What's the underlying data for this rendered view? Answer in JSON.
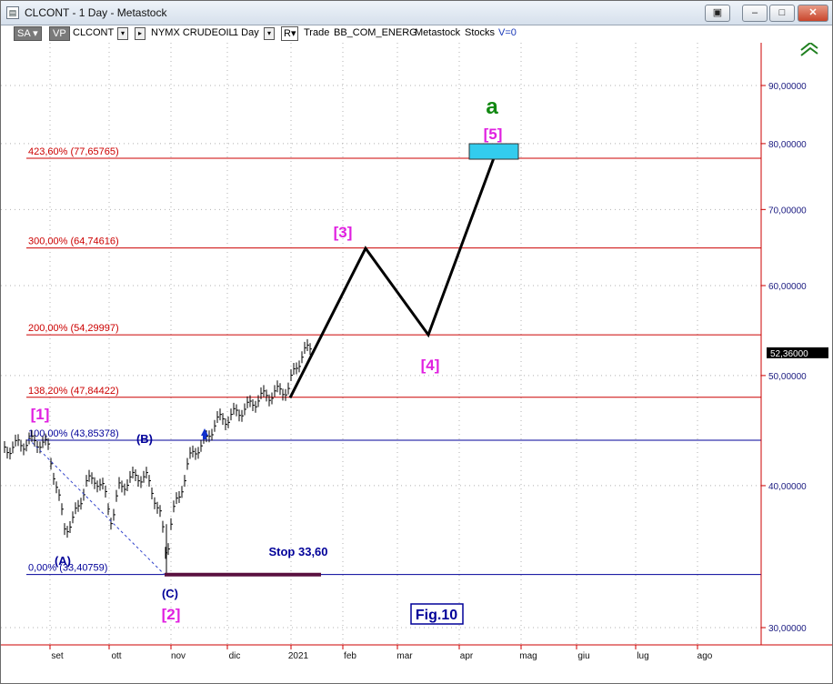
{
  "window": {
    "title": "CLCONT - 1 Day - Metastock",
    "buttons": [
      "restore",
      "minimize",
      "maximize",
      "close"
    ]
  },
  "toolbar": {
    "sa": "SA",
    "vp": "VP",
    "symbol": "CLCONT",
    "exchange": "NYMX CRUDEOIL",
    "period": "1 Day",
    "r_label": "R",
    "trade": "Trade",
    "bb": "BB_COM_ENERG",
    "metastock": "Metastock",
    "stocks": "Stocks",
    "v": "V=0"
  },
  "chart_data": {
    "type": "line",
    "description": "Crude oil daily price chart with Elliott wave projection",
    "y_axis": {
      "scale": "log",
      "ticks": [
        "90,00000",
        "80,00000",
        "70,00000",
        "60,00000",
        "50,00000",
        "40,00000",
        "30,00000"
      ],
      "tick_values": [
        90,
        80,
        70,
        60,
        50,
        40,
        30
      ],
      "current_price_label": "52,36000",
      "current_price": 52.36
    },
    "x_axis": {
      "ticks": [
        "set",
        "ott",
        "nov",
        "dic",
        "2021",
        "feb",
        "mar",
        "apr",
        "mag",
        "giu",
        "lug",
        "ago"
      ]
    },
    "fib_levels": [
      {
        "label": "423,60% (77,65765)",
        "value": 77.65765,
        "color": "#cc0000"
      },
      {
        "label": "300,00% (64,74616)",
        "value": 64.74616,
        "color": "#cc0000"
      },
      {
        "label": "200,00% (54,29997)",
        "value": 54.29997,
        "color": "#cc0000"
      },
      {
        "label": "138,20% (47,84422)",
        "value": 47.84422,
        "color": "#cc0000"
      },
      {
        "label": "100,00% (43,85378)",
        "value": 43.85378,
        "color": "#000099"
      },
      {
        "label": "0,00% (33,40759)",
        "value": 33.40759,
        "color": "#000099"
      }
    ],
    "wave_labels": {
      "a": "a",
      "w5": "[5]",
      "w3": "[3]",
      "w4": "[4]",
      "w1": "[1]",
      "w2": "[2]",
      "A": "(A)",
      "B": "(B)",
      "C": "(C)"
    },
    "stop_label": "Stop 33,60",
    "fig_label": "Fig.10",
    "projection_path_values": [
      {
        "x": "2021-01-08",
        "y": 47.8
      },
      {
        "x": "2021-02-05",
        "y": 64.7
      },
      {
        "x": "2021-03-15",
        "y": 54.3
      },
      {
        "x": "2021-04-15",
        "y": 77.7
      }
    ],
    "colors": {
      "fib_red": "#cc0000",
      "fib_blue": "#000099",
      "wave_magenta": "#e020e0",
      "wave_green": "#118811",
      "target_box": "#33ccee",
      "stop_line": "#5a1040"
    }
  }
}
